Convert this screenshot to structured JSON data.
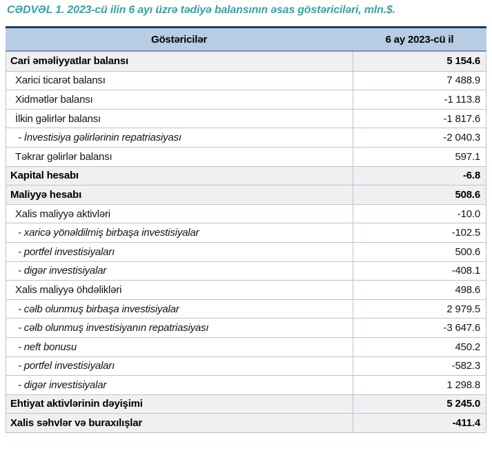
{
  "title": "CƏDVƏL 1. 2023-cü ilin 6 ayı üzrə tədiyə balansının əsas göstəriciləri, mln.$.",
  "colors": {
    "title_teal": "#35a3a6",
    "header_bg": "#b8cce4",
    "table_top_border_navy": "#1f3864",
    "header_bottom_border": "#7e8fa9",
    "grid_border": "#b5c3d8",
    "section_row_bg": "#f0f0f1"
  },
  "table": {
    "columns": [
      "Göstəricilər",
      "6 ay 2023-cü il"
    ],
    "rows": [
      {
        "label": "Cari əməliyyatlar balansı",
        "value": "5 154.6",
        "style": "section"
      },
      {
        "label": "Xarici ticarət balansı",
        "value": "7 488.9",
        "style": "item"
      },
      {
        "label": "Xidmətlər balansı",
        "value": "-1 113.8",
        "style": "item"
      },
      {
        "label": "İlkin gəlirlər balansı",
        "value": "-1 817.6",
        "style": "item"
      },
      {
        "label": "- İnvestisiya gəlirlərinin repatriasiyası",
        "value": "-2 040.3",
        "style": "subitem"
      },
      {
        "label": "Təkrar gəlirlər balansı",
        "value": "597.1",
        "style": "item"
      },
      {
        "label": "Kapital hesabı",
        "value": "-6.8",
        "style": "section"
      },
      {
        "label": "Maliyyə hesabı",
        "value": "508.6",
        "style": "section"
      },
      {
        "label": "Xalis maliyyə aktivləri",
        "value": "-10.0",
        "style": "item"
      },
      {
        "label": "- xaricə yönəldilmiş birbaşa investisiyalar",
        "value": "-102.5",
        "style": "subitem"
      },
      {
        "label": "- portfel investisiyaları",
        "value": "500.6",
        "style": "subitem"
      },
      {
        "label": "- digər investisiyalar",
        "value": "-408.1",
        "style": "subitem"
      },
      {
        "label": "Xalis maliyyə öhdəlikləri",
        "value": "498.6",
        "style": "item"
      },
      {
        "label": "- cəlb olunmuş birbaşa investisiyalar",
        "value": "2 979.5",
        "style": "subitem"
      },
      {
        "label": "- cəlb olunmuş investisiyanın repatriasiyası",
        "value": "-3 647.6",
        "style": "subitem"
      },
      {
        "label": "- neft bonusu",
        "value": "450.2",
        "style": "subitem"
      },
      {
        "label": "- portfel investisiyaları",
        "value": "-582.3",
        "style": "subitem"
      },
      {
        "label": "- digər investisiyalar",
        "value": "1 298.8",
        "style": "subitem"
      },
      {
        "label": "Ehtiyat aktivlərinin dəyişimi",
        "value": "5 245.0",
        "style": "section"
      },
      {
        "label": "Xalis səhvlər və buraxılışlar",
        "value": "-411.4",
        "style": "section"
      }
    ]
  }
}
